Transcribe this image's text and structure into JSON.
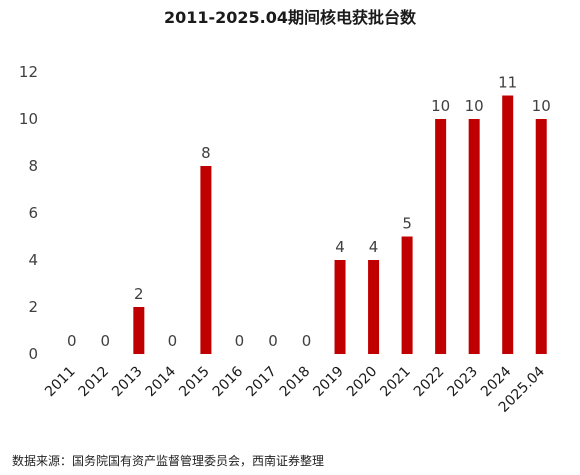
{
  "chart_data": {
    "type": "bar",
    "title": "2011-2025.04期间核电获批台数",
    "categories": [
      "2011",
      "2012",
      "2013",
      "2014",
      "2015",
      "2016",
      "2017",
      "2018",
      "2019",
      "2020",
      "2021",
      "2022",
      "2023",
      "2024",
      "2025.04"
    ],
    "values": [
      0,
      0,
      2,
      0,
      8,
      0,
      0,
      0,
      4,
      4,
      5,
      10,
      10,
      11,
      10
    ],
    "ylim": [
      0,
      12
    ],
    "yticks": [
      0,
      2,
      4,
      6,
      8,
      10,
      12
    ],
    "bar_color": "#c00000",
    "grid": false,
    "xlabel": "",
    "ylabel": ""
  },
  "source_note": "数据来源：国务院国有资产监督管理委员会，西南证券整理"
}
